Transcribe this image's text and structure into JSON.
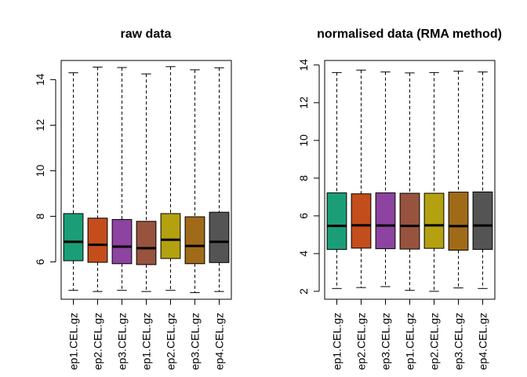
{
  "chart_data": [
    {
      "type": "boxplot",
      "title": "raw data",
      "xlabel": "",
      "ylabel": "",
      "ylim": [
        4.36,
        14.84
      ],
      "yticks": [
        6,
        8,
        10,
        12,
        14
      ],
      "categories": [
        "ep1.CEL.gz",
        "ep2.CEL.gz",
        "ep3.CEL.gz",
        "ep1.CEL.gz",
        "ep2.CEL.gz",
        "ep3.CEL.gz",
        "ep4.CEL.gz"
      ],
      "boxes": [
        {
          "min": 4.75,
          "q1": 6.05,
          "median": 6.88,
          "q3": 8.12,
          "max": 14.3,
          "color": "#1b9e77"
        },
        {
          "min": 4.7,
          "q1": 5.98,
          "median": 6.75,
          "q3": 7.92,
          "max": 14.55,
          "color": "#c44d1c"
        },
        {
          "min": 4.75,
          "q1": 5.92,
          "median": 6.67,
          "q3": 7.86,
          "max": 14.53,
          "color": "#8d44a0"
        },
        {
          "min": 4.7,
          "q1": 5.88,
          "median": 6.6,
          "q3": 7.78,
          "max": 14.25,
          "color": "#98533f"
        },
        {
          "min": 4.75,
          "q1": 6.15,
          "median": 6.97,
          "q3": 8.12,
          "max": 14.57,
          "color": "#b4a10f"
        },
        {
          "min": 4.65,
          "q1": 5.92,
          "median": 6.7,
          "q3": 7.98,
          "max": 14.43,
          "color": "#a06b18"
        },
        {
          "min": 4.7,
          "q1": 5.97,
          "median": 6.88,
          "q3": 8.18,
          "max": 14.52,
          "color": "#545454"
        }
      ]
    },
    {
      "type": "boxplot",
      "title": "normalised data (RMA method)",
      "xlabel": "",
      "ylabel": "",
      "ylim": [
        1.58,
        14.24
      ],
      "yticks": [
        2,
        4,
        6,
        8,
        10,
        12,
        14
      ],
      "categories": [
        "ep1.CEL.gz",
        "ep2.CEL.gz",
        "ep3.CEL.gz",
        "ep1.CEL.gz",
        "ep2.CEL.gz",
        "ep3.CEL.gz",
        "ep4.CEL.gz"
      ],
      "boxes": [
        {
          "min": 2.15,
          "q1": 4.22,
          "median": 5.47,
          "q3": 7.22,
          "max": 13.6,
          "color": "#1b9e77"
        },
        {
          "min": 2.2,
          "q1": 4.29,
          "median": 5.5,
          "q3": 7.17,
          "max": 13.73,
          "color": "#c44d1c"
        },
        {
          "min": 2.25,
          "q1": 4.26,
          "median": 5.49,
          "q3": 7.22,
          "max": 13.63,
          "color": "#8d44a0"
        },
        {
          "min": 2.05,
          "q1": 4.24,
          "median": 5.47,
          "q3": 7.2,
          "max": 13.58,
          "color": "#98533f"
        },
        {
          "min": 2.0,
          "q1": 4.28,
          "median": 5.5,
          "q3": 7.2,
          "max": 13.6,
          "color": "#b4a10f"
        },
        {
          "min": 2.18,
          "q1": 4.18,
          "median": 5.46,
          "q3": 7.26,
          "max": 13.67,
          "color": "#a06b18"
        },
        {
          "min": 2.15,
          "q1": 4.22,
          "median": 5.49,
          "q3": 7.27,
          "max": 13.63,
          "color": "#545454"
        }
      ]
    }
  ]
}
